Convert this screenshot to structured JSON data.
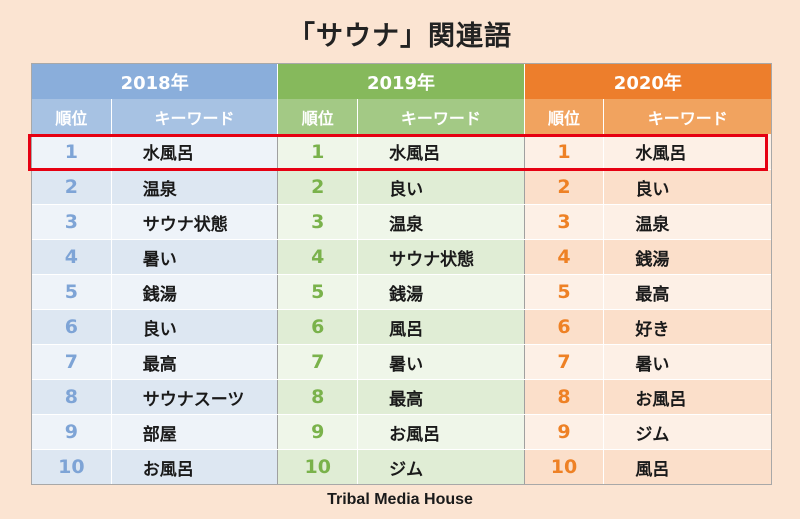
{
  "title": "「サウナ」関連語",
  "footer": "Tribal Media House",
  "years": [
    {
      "label": "2018年",
      "rank_header": "順位",
      "kw_header": "キーワード",
      "header_color": "#8aaedb",
      "sub_color": "#a7c2e3",
      "row_light": "#eef3f9",
      "row_dark": "#dde7f2",
      "rank_color": "#7ea4d6",
      "keywords": [
        "水風呂",
        "温泉",
        "サウナ状態",
        "暑い",
        "銭湯",
        "良い",
        "最高",
        "サウナスーツ",
        "部屋",
        "お風呂"
      ]
    },
    {
      "label": "2019年",
      "rank_header": "順位",
      "kw_header": "キーワード",
      "header_color": "#86b95c",
      "sub_color": "#a3c985",
      "row_light": "#eff6e9",
      "row_dark": "#e0edd5",
      "rank_color": "#7ab24b",
      "keywords": [
        "水風呂",
        "良い",
        "温泉",
        "サウナ状態",
        "銭湯",
        "風呂",
        "暑い",
        "最高",
        "お風呂",
        "ジム"
      ]
    },
    {
      "label": "2020年",
      "rank_header": "順位",
      "kw_header": "キーワード",
      "header_color": "#ed7e2c",
      "sub_color": "#f1a35f",
      "row_light": "#fdf0e6",
      "row_dark": "#fbdfca",
      "rank_color": "#ee8125",
      "keywords": [
        "水風呂",
        "良い",
        "温泉",
        "銭湯",
        "最高",
        "好き",
        "暑い",
        "お風呂",
        "ジム",
        "風呂"
      ]
    }
  ],
  "ranks": [
    "1",
    "2",
    "3",
    "4",
    "5",
    "6",
    "7",
    "8",
    "9",
    "10"
  ]
}
